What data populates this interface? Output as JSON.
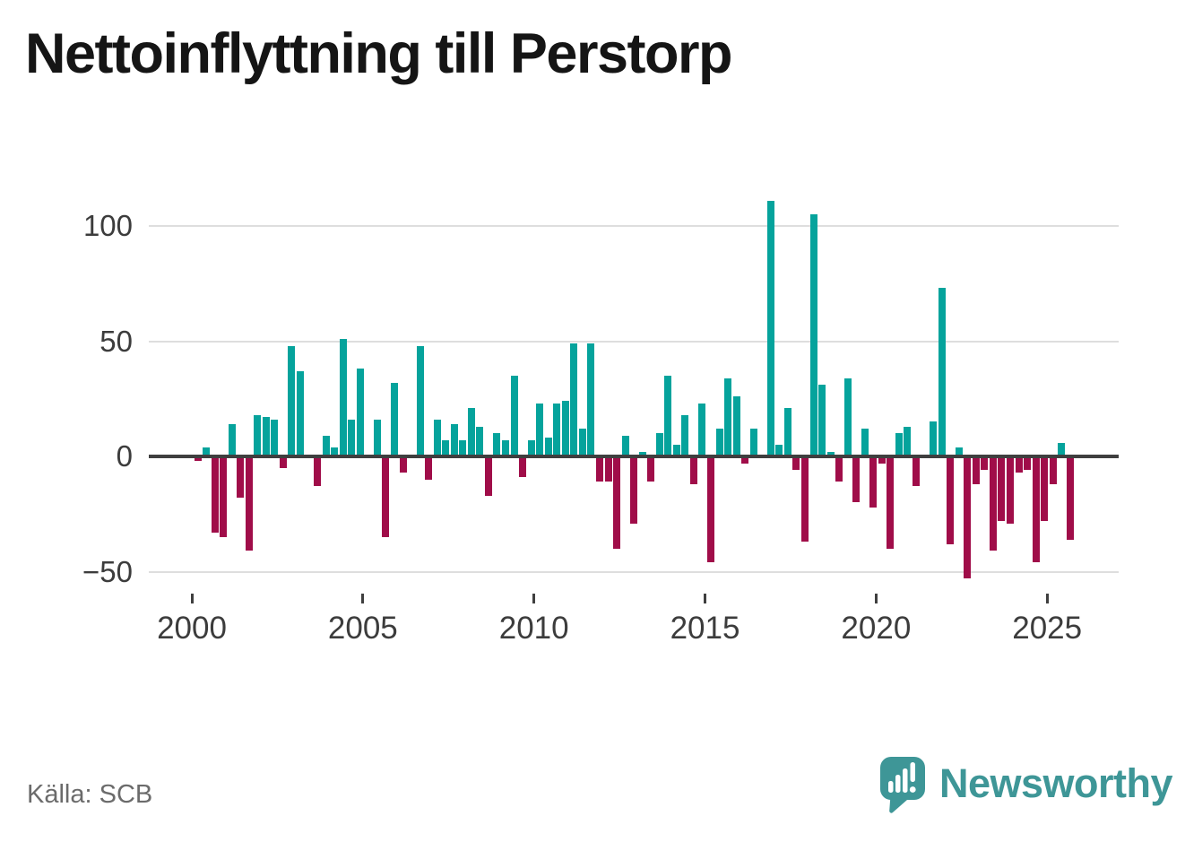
{
  "title": "Nettoinflyttning till Perstorp",
  "source": "Källa: SCB",
  "brand": {
    "name": "Newsworthy",
    "color": "#3e9697"
  },
  "chart_data": {
    "type": "bar",
    "title": "Nettoinflyttning till Perstorp",
    "xlabel": "",
    "ylabel": "",
    "period_unit": "quarter",
    "start_period": "2000 Q1",
    "end_period": "2025 Q3",
    "values": [
      -2,
      4,
      -33,
      -35,
      14,
      -18,
      -41,
      18,
      17,
      16,
      -5,
      48,
      37,
      0,
      -13,
      9,
      4,
      51,
      16,
      38,
      0,
      16,
      -35,
      32,
      -7,
      0,
      48,
      -10,
      16,
      7,
      14,
      7,
      21,
      13,
      -17,
      10,
      7,
      35,
      -9,
      7,
      23,
      8,
      23,
      24,
      49,
      12,
      49,
      -11,
      -11,
      -40,
      9,
      -29,
      2,
      -11,
      10,
      35,
      5,
      18,
      -12,
      23,
      -46,
      12,
      34,
      26,
      -3,
      12,
      0,
      111,
      5,
      21,
      -6,
      -37,
      105,
      31,
      2,
      -11,
      34,
      -20,
      12,
      -22,
      -3,
      -40,
      10,
      13,
      -13,
      0,
      15,
      73,
      -38,
      4,
      -53,
      -12,
      -6,
      -41,
      -28,
      -29,
      -7,
      -6,
      -46,
      -28,
      -12,
      6,
      -36
    ],
    "xticks": [
      2000,
      2005,
      2010,
      2015,
      2020,
      2025
    ],
    "xtick_labels": [
      "2000",
      "2005",
      "2010",
      "2015",
      "2020",
      "2025"
    ],
    "yticks": [
      100,
      50,
      0,
      -50
    ],
    "ytick_labels": [
      "100",
      "50",
      "0",
      "−50"
    ],
    "ylim": [
      -60,
      115
    ],
    "grid": "horizontal",
    "legend": "none",
    "bar_colors": {
      "positive": "#05a39c",
      "negative": "#a00d49"
    },
    "axis_color": "#3f3f3f",
    "gridline_color": "#dedede"
  }
}
